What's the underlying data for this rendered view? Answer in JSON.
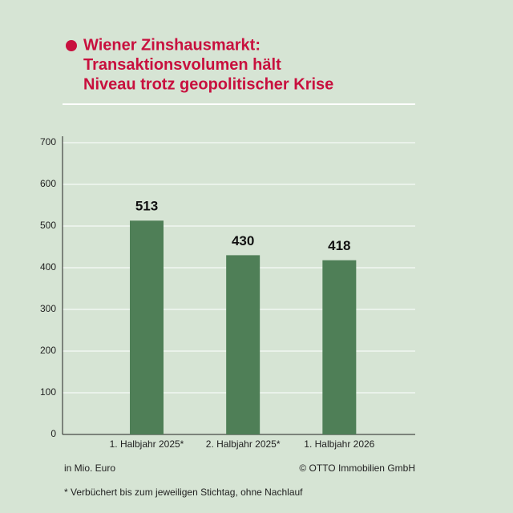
{
  "chart_data": {
    "type": "bar",
    "title": [
      "Wiener Zinshausmarkt:",
      "Transaktionsvolumen hält",
      "Niveau trotz geopolitischer Krise"
    ],
    "categories": [
      "1. Halbjahr 2025*",
      "2. Halbjahr 2025*",
      "1. Halbjahr 2026"
    ],
    "values": [
      513,
      430,
      418
    ],
    "color": "#4f7f57",
    "ylim": [
      0,
      700
    ],
    "yticks": [
      0,
      100,
      200,
      300,
      400,
      500,
      600,
      700
    ],
    "grid": true,
    "unit_note": "in Mio. Euro",
    "source": "© OTTO Immobilien GmbH",
    "footnote": "* Verbüchert bis zum jeweiligen Stichtag, ohne Nachlauf"
  }
}
